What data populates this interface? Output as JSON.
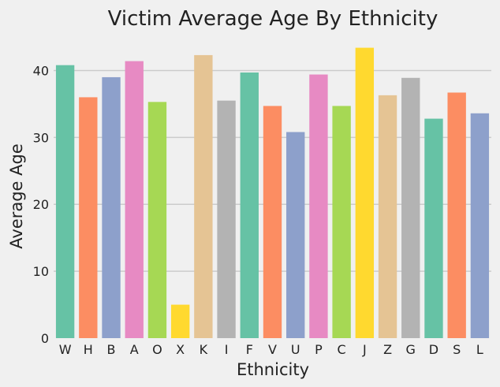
{
  "chart_data": {
    "type": "bar",
    "title": "Victim Average Age By Ethnicity",
    "xlabel": "Ethnicity",
    "ylabel": "Average Age",
    "categories": [
      "W",
      "H",
      "B",
      "A",
      "O",
      "X",
      "K",
      "I",
      "F",
      "V",
      "U",
      "P",
      "C",
      "J",
      "Z",
      "G",
      "D",
      "S",
      "L"
    ],
    "values": [
      40.8,
      36.0,
      39.0,
      41.4,
      35.3,
      5.0,
      42.3,
      35.5,
      39.7,
      34.7,
      30.8,
      39.4,
      34.7,
      43.4,
      36.3,
      38.9,
      32.8,
      36.7,
      33.6
    ],
    "ylim": [
      0,
      45
    ],
    "yticks": [
      0,
      10,
      20,
      30,
      40
    ],
    "grid": "horizontal",
    "palette": [
      "#66c2a5",
      "#fc8d62",
      "#8da0cb",
      "#e78ac3",
      "#a6d854",
      "#ffd92f",
      "#e5c494",
      "#b3b3b3"
    ],
    "background": "#f0f0f0"
  }
}
